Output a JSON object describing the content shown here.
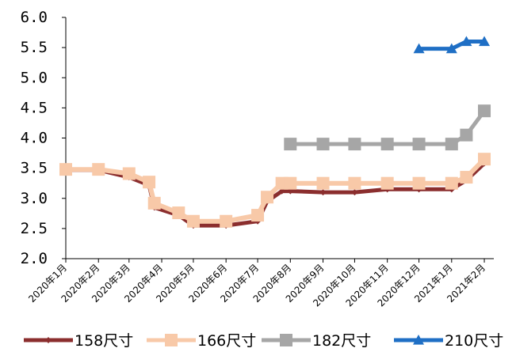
{
  "chart_data": {
    "type": "line",
    "title": "",
    "xlabel": "",
    "ylabel": "",
    "ylim": [
      2.0,
      6.0
    ],
    "y_ticks": [
      "2.0",
      "2.5",
      "3.0",
      "3.5",
      "4.0",
      "4.5",
      "5.0",
      "5.5",
      "6.0"
    ],
    "x_ticks": [
      "2020年1月",
      "2020年2月",
      "2020年3月",
      "2020年4月",
      "2020年5月",
      "2020年6月",
      "2020年7月",
      "2020年8月",
      "2020年9月",
      "2020年10月",
      "2020年11月",
      "2020年12月",
      "2021年1月",
      "2021年2月"
    ],
    "grid": false,
    "legend_position": "bottom",
    "series": [
      {
        "name": "158尺寸",
        "color": "#8b2e2e",
        "marker": "diamond",
        "points": [
          [
            "2020-01-01",
            3.47
          ],
          [
            "2020-02-01",
            3.47
          ],
          [
            "2020-03-01",
            3.35
          ],
          [
            "2020-03-20",
            3.22
          ],
          [
            "2020-03-25",
            2.85
          ],
          [
            "2020-04-17",
            2.72
          ],
          [
            "2020-05-01",
            2.55
          ],
          [
            "2020-06-01",
            2.55
          ],
          [
            "2020-07-01",
            2.62
          ],
          [
            "2020-07-10",
            2.95
          ],
          [
            "2020-07-24",
            3.12
          ],
          [
            "2020-08-01",
            3.12
          ],
          [
            "2020-09-01",
            3.1
          ],
          [
            "2020-10-01",
            3.1
          ],
          [
            "2020-11-01",
            3.15
          ],
          [
            "2020-12-01",
            3.15
          ],
          [
            "2021-01-01",
            3.15
          ],
          [
            "2021-01-15",
            3.3
          ],
          [
            "2021-02-01",
            3.58
          ]
        ]
      },
      {
        "name": "166尺寸",
        "color": "#f8c9a8",
        "marker": "square",
        "points": [
          [
            "2020-01-01",
            3.48
          ],
          [
            "2020-02-01",
            3.48
          ],
          [
            "2020-03-01",
            3.41
          ],
          [
            "2020-03-20",
            3.27
          ],
          [
            "2020-03-25",
            2.92
          ],
          [
            "2020-04-17",
            2.76
          ],
          [
            "2020-05-01",
            2.62
          ],
          [
            "2020-06-01",
            2.62
          ],
          [
            "2020-07-01",
            2.72
          ],
          [
            "2020-07-10",
            3.02
          ],
          [
            "2020-07-24",
            3.25
          ],
          [
            "2020-08-01",
            3.25
          ],
          [
            "2020-09-01",
            3.25
          ],
          [
            "2020-10-01",
            3.25
          ],
          [
            "2020-11-01",
            3.25
          ],
          [
            "2020-12-01",
            3.25
          ],
          [
            "2021-01-01",
            3.25
          ],
          [
            "2021-01-15",
            3.35
          ],
          [
            "2021-02-01",
            3.65
          ]
        ]
      },
      {
        "name": "182尺寸",
        "color": "#a6a6a6",
        "marker": "square",
        "points": [
          [
            "2020-08-01",
            3.9
          ],
          [
            "2020-09-01",
            3.9
          ],
          [
            "2020-10-01",
            3.9
          ],
          [
            "2020-11-01",
            3.9
          ],
          [
            "2020-12-01",
            3.9
          ],
          [
            "2021-01-01",
            3.9
          ],
          [
            "2021-01-15",
            4.05
          ],
          [
            "2021-02-01",
            4.45
          ]
        ]
      },
      {
        "name": "210尺寸",
        "color": "#1f6fc5",
        "marker": "triangle",
        "points": [
          [
            "2020-12-01",
            5.48
          ],
          [
            "2021-01-01",
            5.48
          ],
          [
            "2021-01-15",
            5.6
          ],
          [
            "2021-02-01",
            5.6
          ]
        ]
      }
    ]
  }
}
